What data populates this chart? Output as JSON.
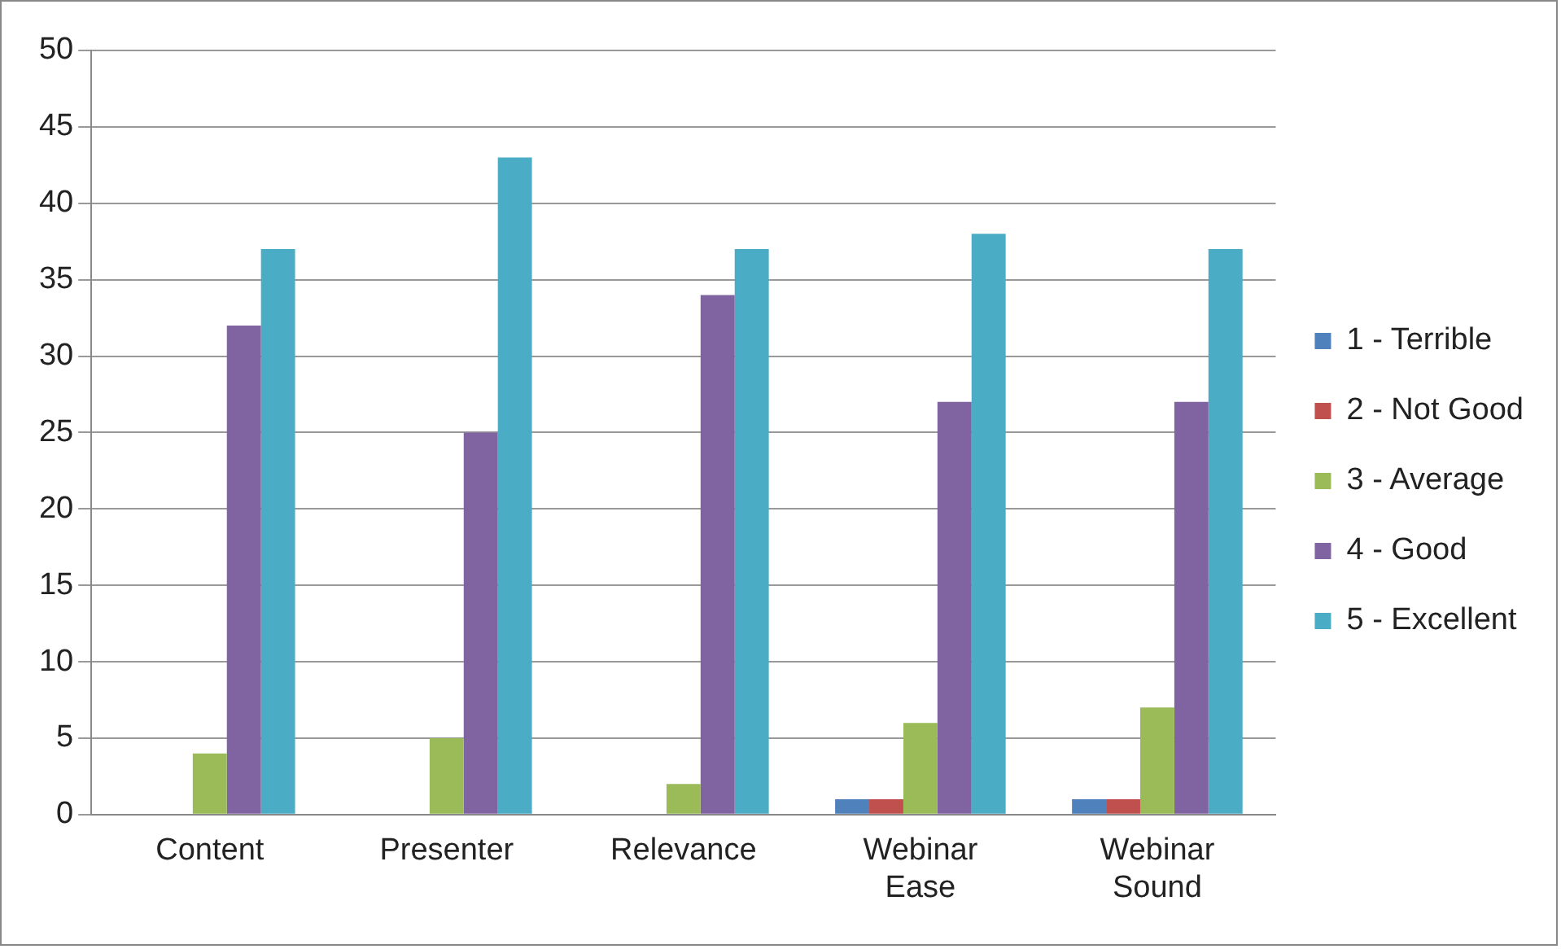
{
  "chart_data": {
    "type": "bar",
    "categories": [
      "Content",
      "Presenter",
      "Relevance",
      "Webinar Ease",
      "Webinar Sound"
    ],
    "series": [
      {
        "name": "1 - Terrible",
        "color": "#4f81bd",
        "values": [
          0,
          0,
          0,
          1,
          1
        ]
      },
      {
        "name": "2 - Not Good",
        "color": "#c0504d",
        "values": [
          0,
          0,
          0,
          1,
          1
        ]
      },
      {
        "name": "3 - Average",
        "color": "#9bbb59",
        "values": [
          4,
          5,
          2,
          6,
          7
        ]
      },
      {
        "name": "4 - Good",
        "color": "#8064a2",
        "values": [
          32,
          25,
          34,
          27,
          27
        ]
      },
      {
        "name": "5 - Excellent",
        "color": "#4bacc6",
        "values": [
          37,
          43,
          37,
          38,
          37
        ]
      }
    ],
    "ylim": [
      0,
      50
    ],
    "yticks": [
      0,
      5,
      10,
      15,
      20,
      25,
      30,
      35,
      40,
      45,
      50
    ],
    "grid": "y",
    "legend": "right"
  }
}
